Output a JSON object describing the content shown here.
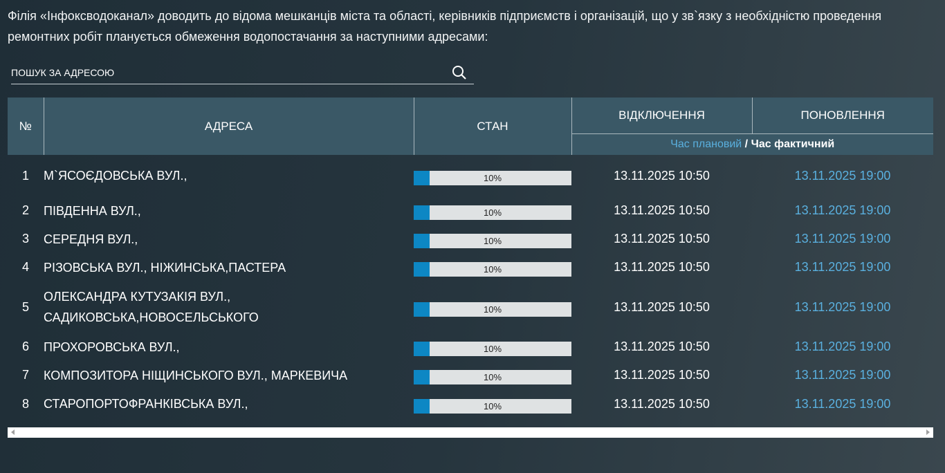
{
  "intro": "Філія «Інфоксводоканал» доводить до відома мешканців міста та області, керівників підприємств і організацій, що у зв`язку з необхідністю проведення ремонтних робіт планується обмеження водопостачання за наступними адресами:",
  "search": {
    "placeholder": "ПОШУК ЗА АДРЕСОЮ",
    "icon": "search-icon"
  },
  "table": {
    "headers": {
      "num": "№",
      "address": "АДРЕСА",
      "status": "СТАН",
      "off": "ВІДКЛЮЧЕННЯ",
      "restore": "ПОНОВЛЕННЯ",
      "planned": "Час плановий",
      "sep": " / ",
      "actual": "Час фактичний"
    },
    "colors": {
      "header_bg": "#3a5866",
      "progress": "#0d87c4",
      "planned_text": "#5ab0df"
    },
    "rows": [
      {
        "n": "1",
        "address": "М`ЯСОЄДОВСЬКА ВУЛ.,",
        "progress": 10,
        "progress_label": "10%",
        "off": "13.11.2025 10:50",
        "restore": "13.11.2025 19:00"
      },
      {
        "n": "2",
        "address": "ПІВДЕННА ВУЛ.,",
        "progress": 10,
        "progress_label": "10%",
        "off": "13.11.2025 10:50",
        "restore": "13.11.2025 19:00"
      },
      {
        "n": "3",
        "address": "СЕРЕДНЯ ВУЛ.,",
        "progress": 10,
        "progress_label": "10%",
        "off": "13.11.2025 10:50",
        "restore": "13.11.2025 19:00"
      },
      {
        "n": "4",
        "address": "РІЗОВСЬКА ВУЛ., НІЖИНСЬКА,ПАСТЕРА",
        "progress": 10,
        "progress_label": "10%",
        "off": "13.11.2025 10:50",
        "restore": "13.11.2025 19:00"
      },
      {
        "n": "5",
        "address": "ОЛЕКСАНДРА КУТУЗАКІЯ ВУЛ., САДИКОВСЬКА,НОВОСЕЛЬСЬКОГО",
        "progress": 10,
        "progress_label": "10%",
        "off": "13.11.2025 10:50",
        "restore": "13.11.2025 19:00"
      },
      {
        "n": "6",
        "address": "ПРОХОРОВСЬКА ВУЛ.,",
        "progress": 10,
        "progress_label": "10%",
        "off": "13.11.2025 10:50",
        "restore": "13.11.2025 19:00"
      },
      {
        "n": "7",
        "address": "КОМПОЗИТОРА НІЩИНСЬКОГО ВУЛ., МАРКЕВИЧА",
        "progress": 10,
        "progress_label": "10%",
        "off": "13.11.2025 10:50",
        "restore": "13.11.2025 19:00"
      },
      {
        "n": "8",
        "address": "СТАРОПОРТОФРАНКІВСЬКА ВУЛ.,",
        "progress": 10,
        "progress_label": "10%",
        "off": "13.11.2025 10:50",
        "restore": "13.11.2025 19:00"
      }
    ]
  }
}
